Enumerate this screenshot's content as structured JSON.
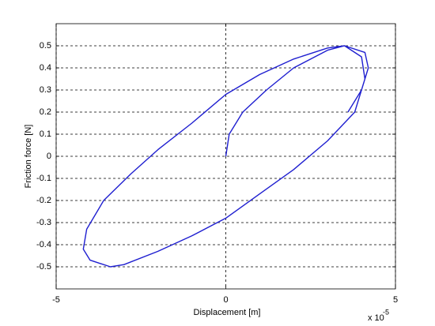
{
  "chart_data": {
    "type": "line",
    "x_label": "Displacement [m]",
    "y_label": "Friction force [N]",
    "x_exponent_base": "x 10",
    "x_exponent": "-5",
    "xlim": [
      -5e-05,
      5e-05
    ],
    "xticks": [
      {
        "value": -5e-05,
        "label": "-5"
      },
      {
        "value": 0,
        "label": "0"
      },
      {
        "value": 5e-05,
        "label": "5"
      }
    ],
    "ylim": [
      -0.6,
      0.6
    ],
    "yticks": [
      -0.5,
      -0.4,
      -0.3,
      -0.2,
      -0.1,
      0,
      0.1,
      0.2,
      0.3,
      0.4,
      0.5
    ],
    "grid": true,
    "series": [
      {
        "color": "#1f1fd0",
        "x": [
          0,
          1e-06,
          5e-06,
          1.2e-05,
          2e-05,
          3e-05,
          3.5e-05,
          4e-05,
          4.1e-05,
          3.8e-05,
          3e-05,
          2e-05,
          1e-05,
          0,
          -1e-05,
          -2e-05,
          -3e-05,
          -3.4e-05,
          -4e-05,
          -4.2e-05,
          -4.1e-05,
          -3.6e-05,
          -2.8e-05,
          -2e-05,
          -1e-05,
          0,
          1e-05,
          2e-05,
          3e-05,
          3.5e-05,
          4.1e-05,
          4.2e-05,
          4e-05,
          3.6e-05
        ],
        "values": [
          0,
          0.1,
          0.2,
          0.3,
          0.4,
          0.48,
          0.5,
          0.45,
          0.35,
          0.2,
          0.07,
          -0.06,
          -0.17,
          -0.28,
          -0.36,
          -0.43,
          -0.49,
          -0.5,
          -0.47,
          -0.42,
          -0.33,
          -0.2,
          -0.08,
          0.03,
          0.15,
          0.28,
          0.37,
          0.44,
          0.49,
          0.5,
          0.47,
          0.4,
          0.3,
          0.2
        ]
      }
    ]
  }
}
